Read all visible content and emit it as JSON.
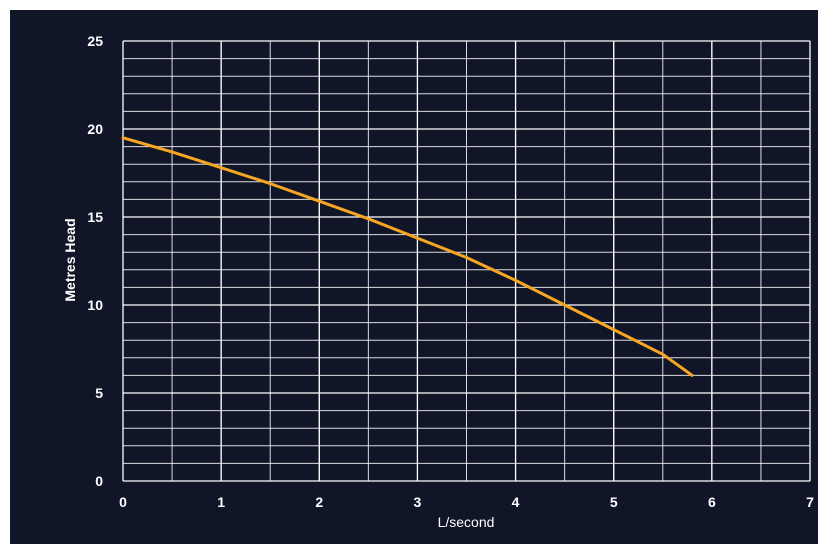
{
  "chart_data": {
    "type": "line",
    "xlabel": "L/second",
    "ylabel": "Metres Head",
    "xlim": [
      0,
      7
    ],
    "ylim": [
      0,
      25
    ],
    "x_ticks": [
      "0",
      "1",
      "2",
      "3",
      "4",
      "5",
      "6",
      "7"
    ],
    "y_ticks": [
      "0",
      "5",
      "10",
      "15",
      "20",
      "25"
    ],
    "x_minor_step": 0.5,
    "y_minor_step": 1,
    "grid": true,
    "legend": "none",
    "series": [
      {
        "color": "#f5a623",
        "points": [
          [
            0,
            19.5
          ],
          [
            0.5,
            18.7
          ],
          [
            1,
            17.8
          ],
          [
            1.5,
            16.9
          ],
          [
            2,
            15.9
          ],
          [
            2.5,
            14.9
          ],
          [
            3,
            13.8
          ],
          [
            3.5,
            12.7
          ],
          [
            4,
            11.4
          ],
          [
            4.5,
            10.0
          ],
          [
            5,
            8.6
          ],
          [
            5.5,
            7.2
          ],
          [
            5.8,
            6.0
          ]
        ]
      }
    ]
  },
  "colors": {
    "background": "#101528",
    "frame": "#ffffff",
    "grid": "#ffffff",
    "curve": "#f5a623"
  }
}
